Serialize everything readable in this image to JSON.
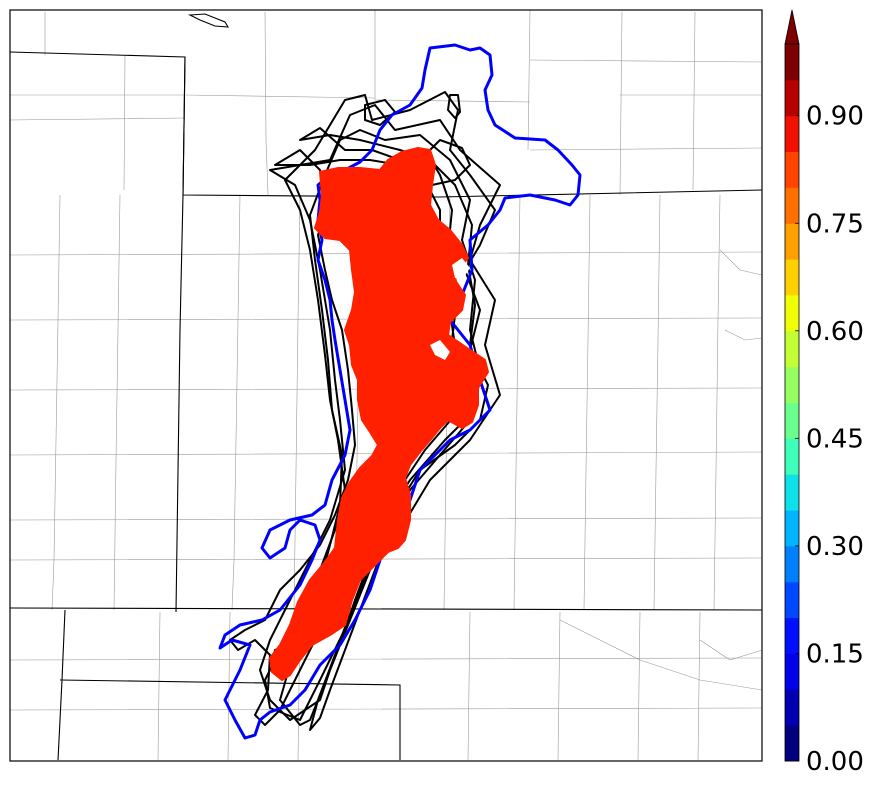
{
  "colorbar": {
    "tick_labels": [
      "0.00",
      "0.15",
      "0.30",
      "0.45",
      "0.60",
      "0.75",
      "0.90"
    ],
    "tick_values": [
      0.0,
      0.15,
      0.3,
      0.45,
      0.6,
      0.75,
      0.9
    ],
    "range": [
      0.0,
      1.0
    ],
    "extend": "max",
    "colors": [
      "#00007f",
      "#0000b2",
      "#0000e8",
      "#0010ff",
      "#0048ff",
      "#0080ff",
      "#00b4ff",
      "#0de1ea",
      "#3dffb9",
      "#6aff8c",
      "#96ff60",
      "#c2ff34",
      "#f0ff06",
      "#ffd000",
      "#ffa000",
      "#ff7000",
      "#ff4400",
      "#f21000",
      "#b70000",
      "#7f0000"
    ]
  },
  "map": {
    "background_color": "#ffffff",
    "probability_fill_color": "#ff2000",
    "member_contour_color": "#000000",
    "observed_contour_color": "#0000ff"
  }
}
